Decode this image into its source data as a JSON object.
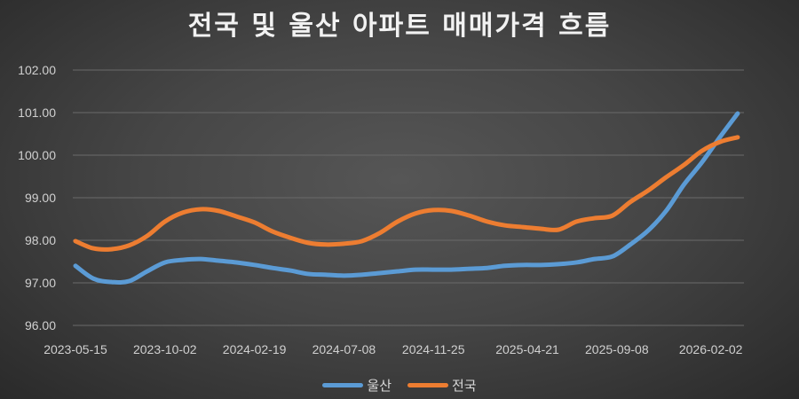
{
  "chart_data": {
    "type": "line",
    "title": "전국 및 울산 아파트 매매가격 흐름",
    "xlabel": "",
    "ylabel": "",
    "ylim": [
      96,
      102
    ],
    "y_ticks": [
      "96.00",
      "97.00",
      "98.00",
      "99.00",
      "100.00",
      "101.00",
      "102.00"
    ],
    "x_ticks": [
      "2023-05-15",
      "2023-10-02",
      "2024-02-19",
      "2024-07-08",
      "2024-11-25",
      "2025-04-21",
      "2025-09-08",
      "2026-02-02"
    ],
    "grid": "horizontal",
    "legend_position": "bottom",
    "x": [
      "2023-05-15",
      "2023-06-12",
      "2023-07-10",
      "2023-08-07",
      "2023-09-04",
      "2023-10-02",
      "2023-10-30",
      "2023-11-27",
      "2023-12-25",
      "2024-01-22",
      "2024-02-19",
      "2024-03-18",
      "2024-04-15",
      "2024-05-13",
      "2024-06-10",
      "2024-07-08",
      "2024-08-05",
      "2024-09-02",
      "2024-09-30",
      "2024-10-28",
      "2024-11-25",
      "2024-12-23",
      "2025-01-20",
      "2025-02-17",
      "2025-03-17",
      "2025-04-14",
      "2025-05-12",
      "2025-06-09",
      "2025-07-07",
      "2025-08-04",
      "2025-09-01",
      "2025-09-29",
      "2025-10-27",
      "2025-11-24",
      "2025-12-22",
      "2026-01-19",
      "2026-02-16",
      "2026-03-16"
    ],
    "series": [
      {
        "name": "울산",
        "color": "#5b9bd5",
        "values": [
          97.4,
          97.1,
          97.02,
          97.04,
          97.27,
          97.48,
          97.54,
          97.56,
          97.52,
          97.48,
          97.42,
          97.35,
          97.29,
          97.21,
          97.19,
          97.17,
          97.19,
          97.23,
          97.27,
          97.31,
          97.31,
          97.31,
          97.33,
          97.35,
          97.4,
          97.42,
          97.42,
          97.44,
          97.48,
          97.56,
          97.62,
          97.9,
          98.23,
          98.69,
          99.31,
          99.83,
          100.42,
          100.98
        ]
      },
      {
        "name": "전국",
        "color": "#ed7d31",
        "values": [
          97.98,
          97.81,
          97.79,
          97.88,
          98.1,
          98.44,
          98.65,
          98.73,
          98.69,
          98.56,
          98.42,
          98.21,
          98.06,
          97.94,
          97.9,
          97.92,
          97.98,
          98.17,
          98.44,
          98.63,
          98.71,
          98.69,
          98.58,
          98.44,
          98.35,
          98.31,
          98.27,
          98.25,
          98.44,
          98.52,
          98.58,
          98.9,
          99.17,
          99.48,
          99.77,
          100.1,
          100.31,
          100.42
        ]
      }
    ]
  }
}
